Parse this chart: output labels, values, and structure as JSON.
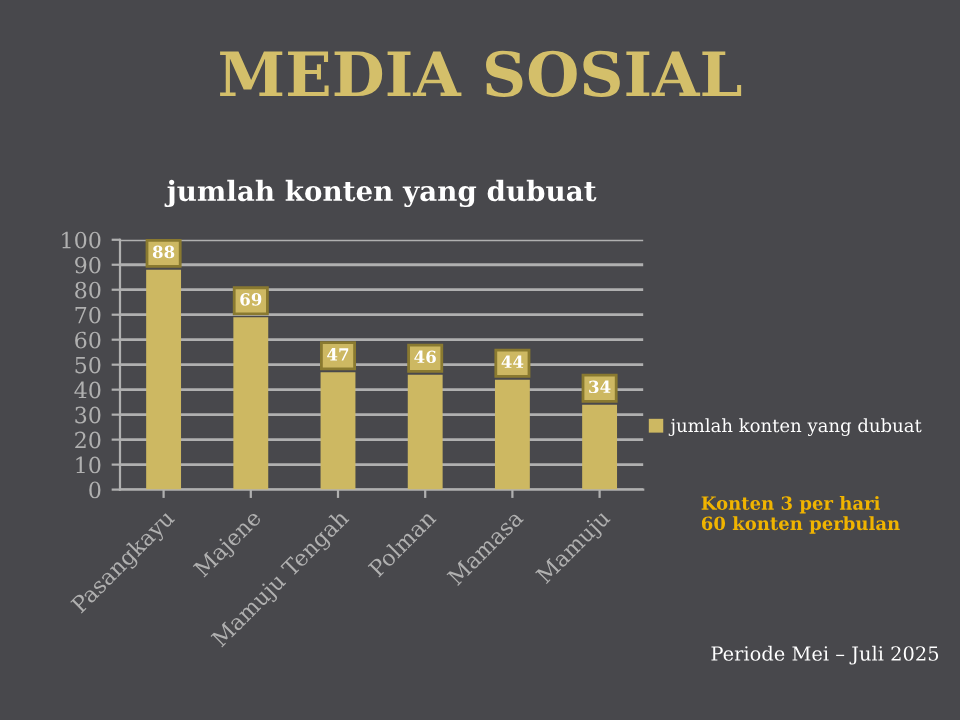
{
  "chart_data": {
    "type": "bar",
    "title": "MEDIA SOSIAL",
    "subtitle": "jumlah konten yang dubuat",
    "categories": [
      "Pasangkayu",
      "Majene",
      "Mamuju Tengah",
      "Polman",
      "Mamasa",
      "Mamuju"
    ],
    "series": [
      {
        "name": "jumlah konten yang dubuat",
        "color": "#cdb862",
        "values": [
          88,
          69,
          47,
          46,
          44,
          34
        ]
      }
    ],
    "ylim": [
      0,
      100
    ],
    "yticks": [
      0,
      10,
      20,
      30,
      40,
      50,
      60,
      70,
      80,
      90,
      100
    ],
    "grid": "y",
    "legend": "right",
    "data_labels": true,
    "annotations": [
      "Konten 3 per hari\n60 konten perbulan",
      "Periode Mei – Juli 2025"
    ]
  }
}
